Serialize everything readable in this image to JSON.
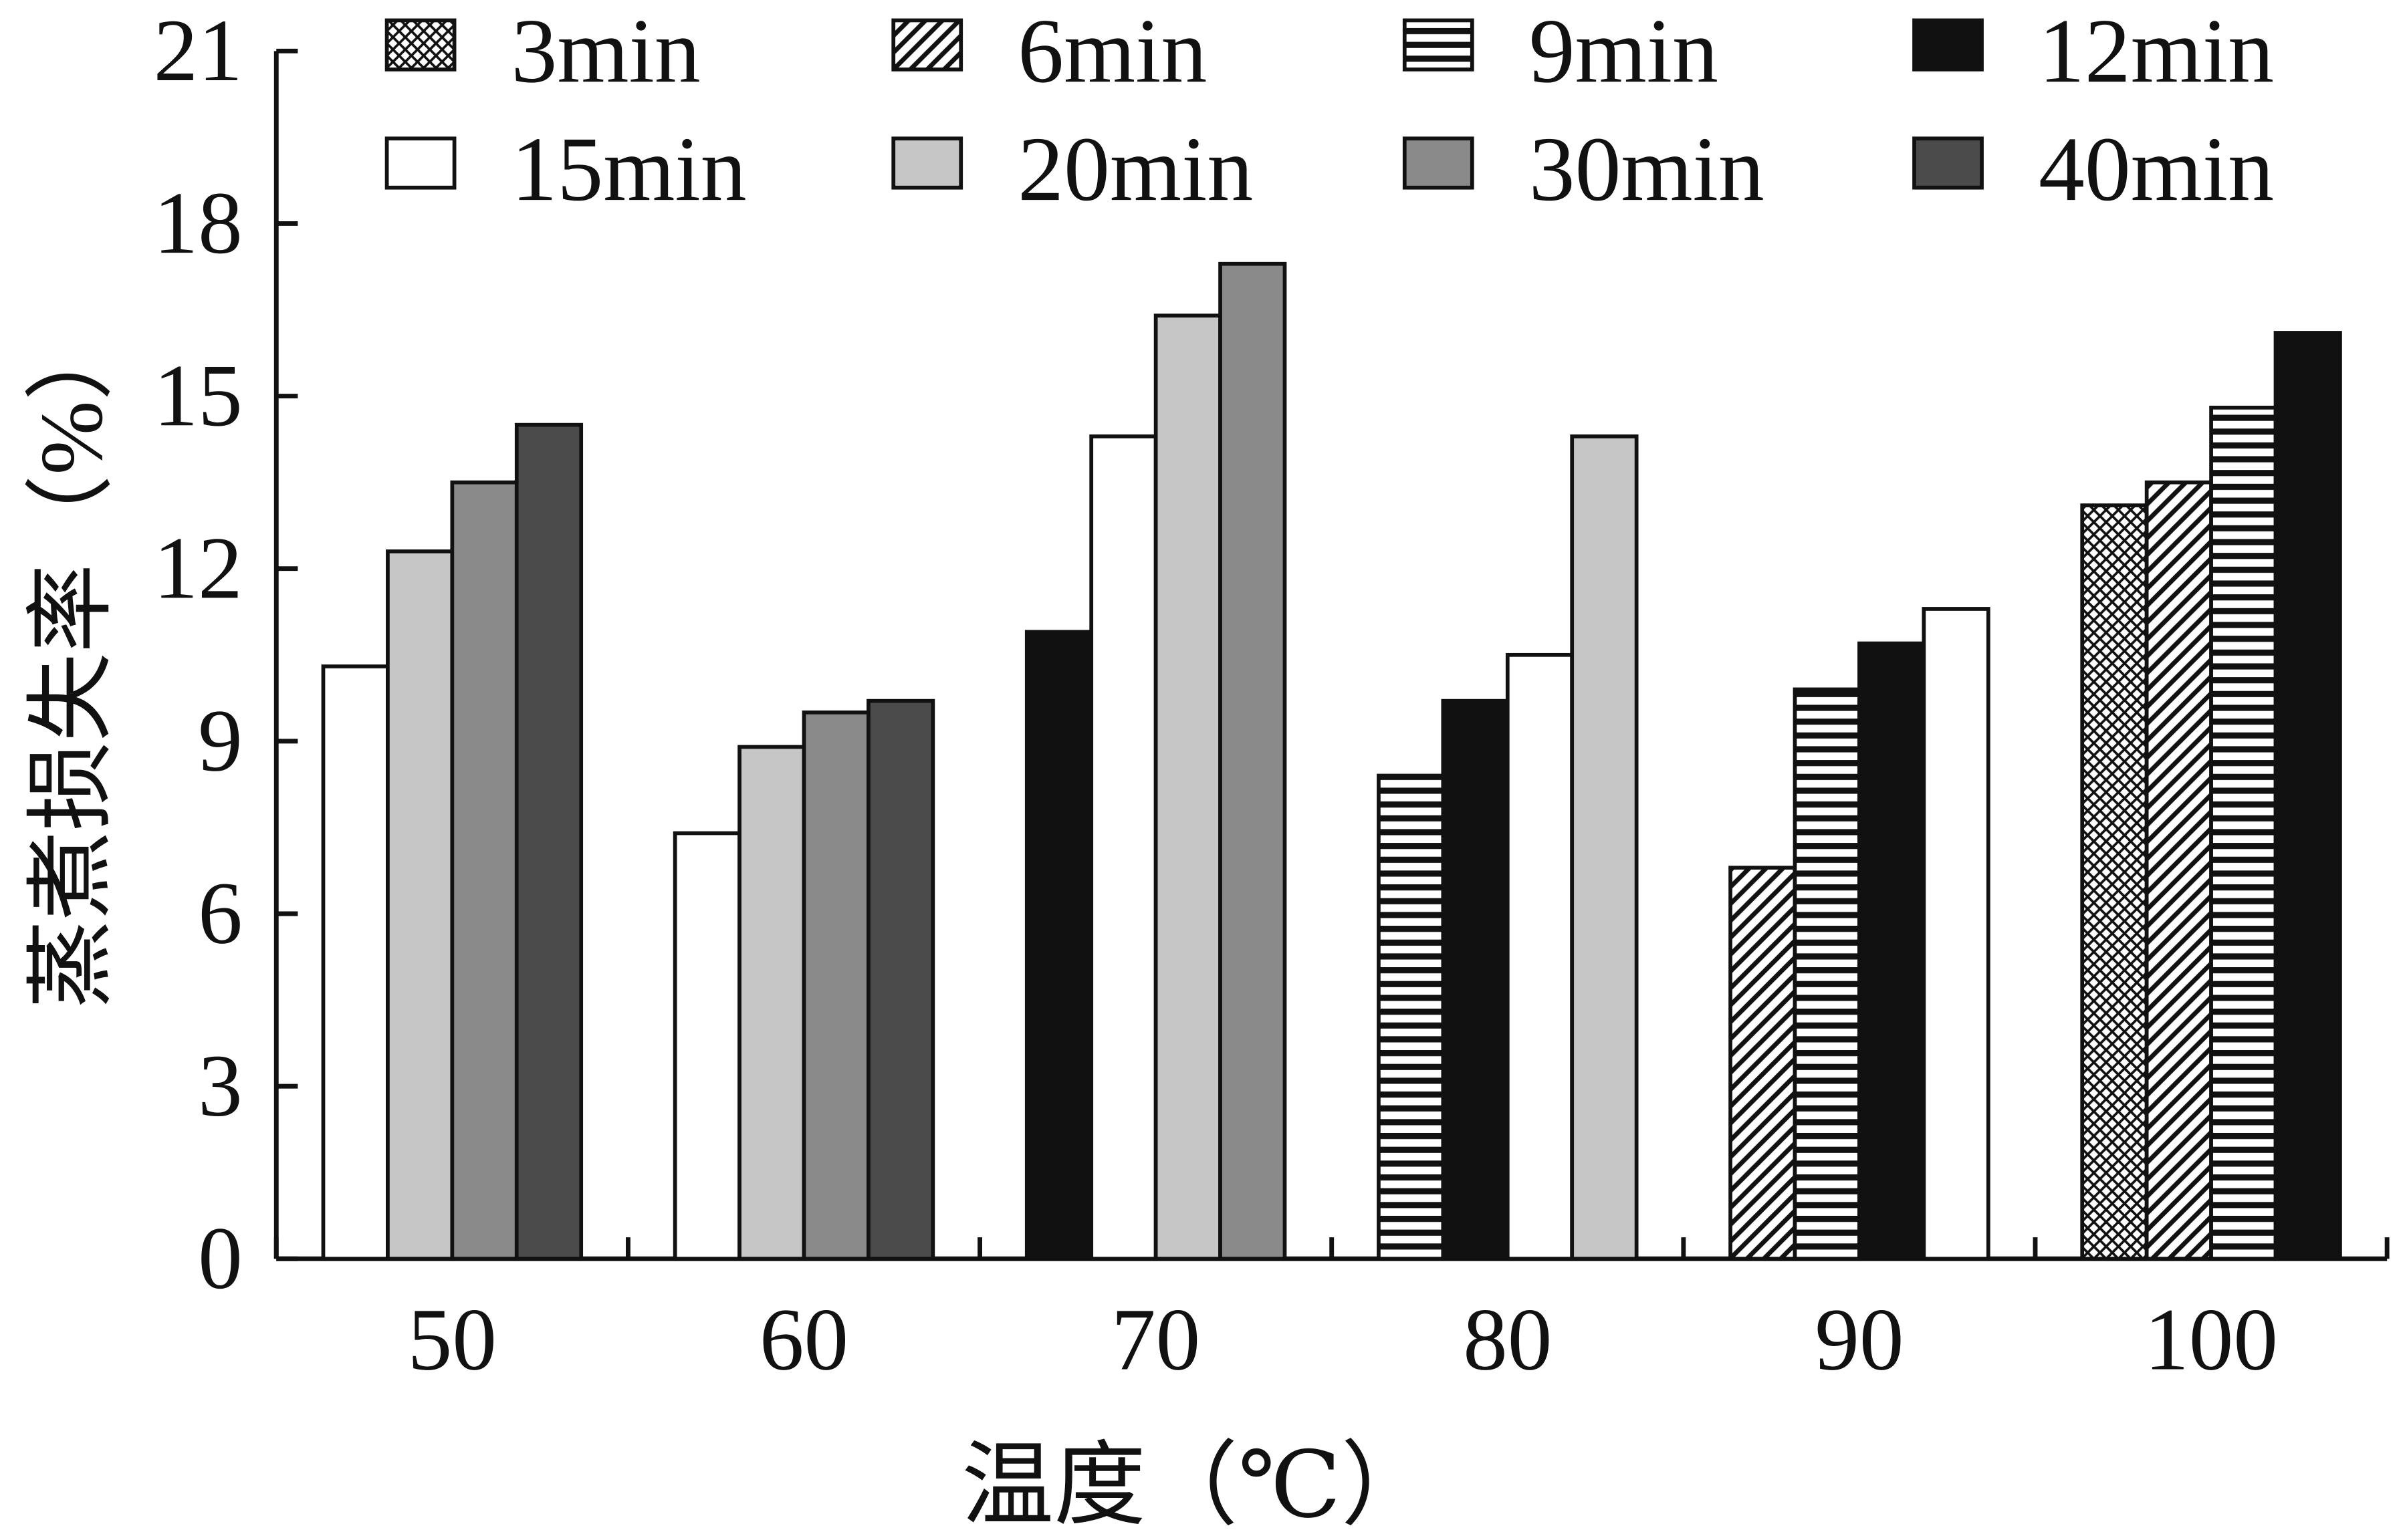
{
  "chart_data": {
    "type": "bar",
    "title": "",
    "xlabel": "温度（℃）",
    "ylabel": "蒸煮损失率（%）",
    "ylim": [
      0,
      21
    ],
    "yticks": [
      "0",
      "3",
      "6",
      "9",
      "12",
      "15",
      "18",
      "21"
    ],
    "categories": [
      "50",
      "60",
      "70",
      "80",
      "90",
      "100"
    ],
    "legend_position": "top",
    "legend": [
      "3min",
      "6min",
      "9min",
      "12min",
      "15min",
      "20min",
      "30min",
      "40min"
    ],
    "series": [
      {
        "name": "3min",
        "fill": "crosshatch",
        "values": [
          null,
          null,
          null,
          null,
          null,
          13.1
        ]
      },
      {
        "name": "6min",
        "fill": "diagonal",
        "values": [
          null,
          null,
          null,
          null,
          6.8,
          13.5
        ]
      },
      {
        "name": "9min",
        "fill": "horizontal",
        "values": [
          null,
          null,
          null,
          8.4,
          9.9,
          14.8
        ]
      },
      {
        "name": "12min",
        "fill": "#111111",
        "values": [
          null,
          null,
          10.9,
          9.7,
          10.7,
          16.1
        ]
      },
      {
        "name": "15min",
        "fill": "#ffffff",
        "values": [
          10.3,
          7.4,
          14.3,
          10.5,
          11.3,
          null
        ]
      },
      {
        "name": "20min",
        "fill": "#c6c6c6",
        "values": [
          12.3,
          8.9,
          16.4,
          14.3,
          null,
          null
        ]
      },
      {
        "name": "30min",
        "fill": "#8a8a8a",
        "values": [
          13.5,
          9.5,
          17.3,
          null,
          null,
          null
        ]
      },
      {
        "name": "40min",
        "fill": "#4b4b4b",
        "values": [
          14.5,
          9.7,
          null,
          null,
          null,
          null
        ]
      }
    ]
  }
}
